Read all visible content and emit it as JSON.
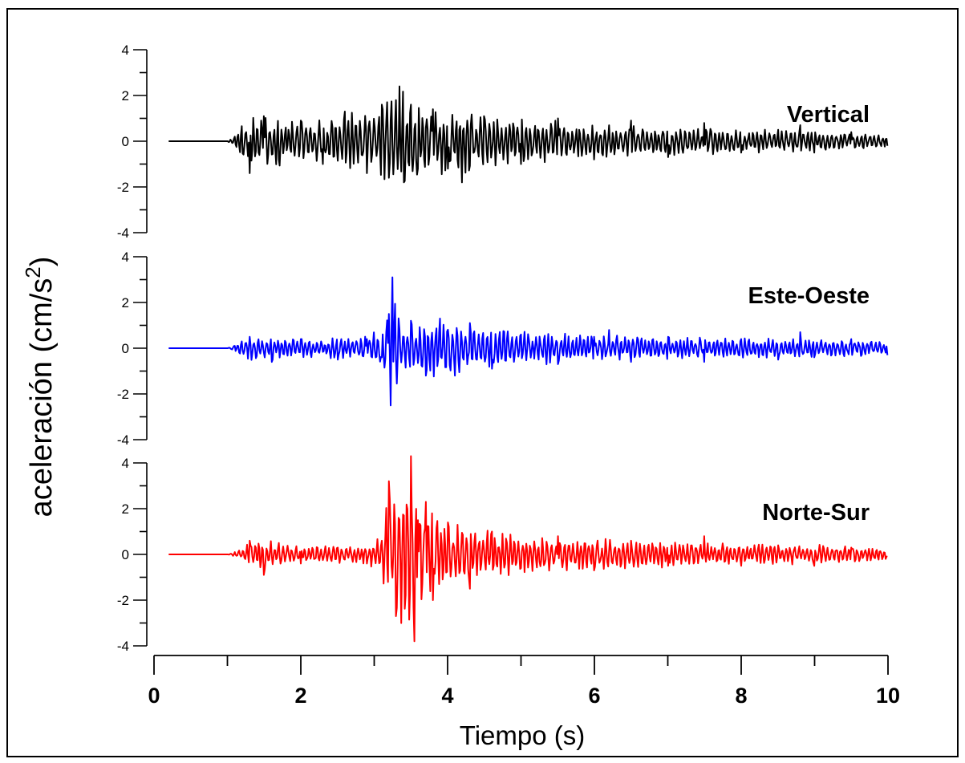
{
  "chart_data": [
    {
      "type": "line",
      "panel": "top",
      "series_label": "Vertical",
      "color": "#000000",
      "ylim": [
        -4,
        4
      ],
      "yticks": [
        -4,
        -2,
        0,
        2,
        4
      ],
      "xlim": [
        0,
        10
      ],
      "x": [
        0.2,
        1.0,
        1.1,
        1.3,
        1.5,
        1.7,
        2.0,
        2.3,
        2.6,
        2.9,
        3.1,
        3.2,
        3.3,
        3.35,
        3.4,
        3.5,
        3.6,
        3.8,
        4.0,
        4.2,
        4.5,
        5.0,
        5.5,
        6.0,
        6.5,
        7.0,
        7.5,
        8.0,
        8.5,
        8.8,
        9.0,
        9.5,
        10.0
      ],
      "y": [
        0,
        0,
        0.2,
        -1.4,
        1.1,
        -0.8,
        0.9,
        -1.0,
        1.3,
        -1.4,
        1.6,
        -1.6,
        1.8,
        2.4,
        -1.8,
        1.6,
        -1.2,
        1.4,
        -1.2,
        -1.8,
        1.1,
        -1.0,
        1.0,
        -0.8,
        0.9,
        -0.7,
        0.8,
        -0.5,
        0.5,
        0.7,
        -0.5,
        0.4,
        -0.2
      ],
      "amplitude_envelope": [
        [
          0.2,
          0
        ],
        [
          1.0,
          0
        ],
        [
          1.1,
          0.3
        ],
        [
          1.3,
          1.3
        ],
        [
          2.0,
          1.0
        ],
        [
          2.6,
          1.2
        ],
        [
          3.0,
          1.4
        ],
        [
          3.35,
          2.4
        ],
        [
          3.7,
          1.6
        ],
        [
          4.2,
          1.5
        ],
        [
          5.0,
          1.0
        ],
        [
          6.0,
          0.8
        ],
        [
          7.0,
          0.7
        ],
        [
          8.0,
          0.55
        ],
        [
          9.0,
          0.45
        ],
        [
          10.0,
          0.3
        ]
      ]
    },
    {
      "type": "line",
      "panel": "middle",
      "series_label": "Este-Oeste",
      "color": "#0000ff",
      "ylim": [
        -4,
        4
      ],
      "yticks": [
        -4,
        -2,
        0,
        2,
        4
      ],
      "xlim": [
        0,
        10
      ],
      "x": [
        0.2,
        1.0,
        1.1,
        1.3,
        1.6,
        2.0,
        2.5,
        2.9,
        3.1,
        3.2,
        3.22,
        3.25,
        3.3,
        3.5,
        3.7,
        3.9,
        4.1,
        4.3,
        4.6,
        5.0,
        5.5,
        6.0,
        6.2,
        6.5,
        7.0,
        7.5,
        8.0,
        8.5,
        8.8,
        9.0,
        9.5,
        10.0
      ],
      "y": [
        0,
        0,
        0.1,
        0.5,
        -0.6,
        0.4,
        -0.5,
        0.4,
        -0.4,
        1.5,
        -2.5,
        3.1,
        -0.5,
        1.2,
        -1.2,
        1.3,
        -1.2,
        1.1,
        -0.9,
        0.6,
        -0.7,
        0.5,
        0.8,
        -0.6,
        0.5,
        -0.6,
        0.4,
        -0.5,
        0.7,
        -0.4,
        0.4,
        -0.3
      ],
      "amplitude_envelope": [
        [
          0.2,
          0
        ],
        [
          1.0,
          0
        ],
        [
          1.1,
          0.15
        ],
        [
          1.3,
          0.6
        ],
        [
          2.0,
          0.45
        ],
        [
          2.8,
          0.45
        ],
        [
          3.1,
          0.9
        ],
        [
          3.22,
          2.5
        ],
        [
          3.25,
          3.1
        ],
        [
          3.4,
          1.1
        ],
        [
          3.9,
          1.3
        ],
        [
          4.5,
          1.0
        ],
        [
          5.0,
          0.8
        ],
        [
          6.0,
          0.6
        ],
        [
          7.0,
          0.5
        ],
        [
          8.0,
          0.45
        ],
        [
          9.0,
          0.45
        ],
        [
          10.0,
          0.35
        ]
      ]
    },
    {
      "type": "line",
      "panel": "bottom",
      "series_label": "Norte-Sur",
      "color": "#ff0000",
      "ylim": [
        -4,
        4
      ],
      "yticks": [
        -4,
        -2,
        0,
        2,
        4
      ],
      "xlim": [
        0,
        10
      ],
      "xticks": [
        0,
        2,
        4,
        6,
        8,
        10
      ],
      "xlabel": "Tiempo (s)",
      "x": [
        0.2,
        1.0,
        1.1,
        1.3,
        1.5,
        1.7,
        2.0,
        2.5,
        2.9,
        3.1,
        3.2,
        3.3,
        3.4,
        3.5,
        3.55,
        3.6,
        3.7,
        3.8,
        4.0,
        4.3,
        4.6,
        5.0,
        5.5,
        6.0,
        6.5,
        7.0,
        7.5,
        8.0,
        8.5,
        9.0,
        9.5,
        10.0
      ],
      "y": [
        0,
        0,
        0.1,
        0.6,
        -0.9,
        0.5,
        -0.4,
        0.3,
        -0.4,
        0.6,
        3.2,
        -2.7,
        1.7,
        4.3,
        -3.8,
        1.5,
        2.3,
        -2.0,
        1.4,
        -1.5,
        1.0,
        -0.6,
        0.8,
        -0.7,
        0.6,
        -0.5,
        0.8,
        -0.5,
        0.4,
        -0.5,
        0.3,
        -0.1
      ],
      "amplitude_envelope": [
        [
          0.2,
          0
        ],
        [
          1.0,
          0
        ],
        [
          1.1,
          0.1
        ],
        [
          1.4,
          0.8
        ],
        [
          1.8,
          0.4
        ],
        [
          2.8,
          0.4
        ],
        [
          3.1,
          0.8
        ],
        [
          3.2,
          3.2
        ],
        [
          3.3,
          2.6
        ],
        [
          3.5,
          4.3
        ],
        [
          3.55,
          3.8
        ],
        [
          3.7,
          2.2
        ],
        [
          4.0,
          1.4
        ],
        [
          4.6,
          1.1
        ],
        [
          5.0,
          0.8
        ],
        [
          6.0,
          0.7
        ],
        [
          7.0,
          0.6
        ],
        [
          8.0,
          0.5
        ],
        [
          9.0,
          0.45
        ],
        [
          10.0,
          0.3
        ]
      ]
    }
  ],
  "ylabel_main": "aceleración (cm/s",
  "ylabel_sup": "2",
  "ylabel_close": ")"
}
